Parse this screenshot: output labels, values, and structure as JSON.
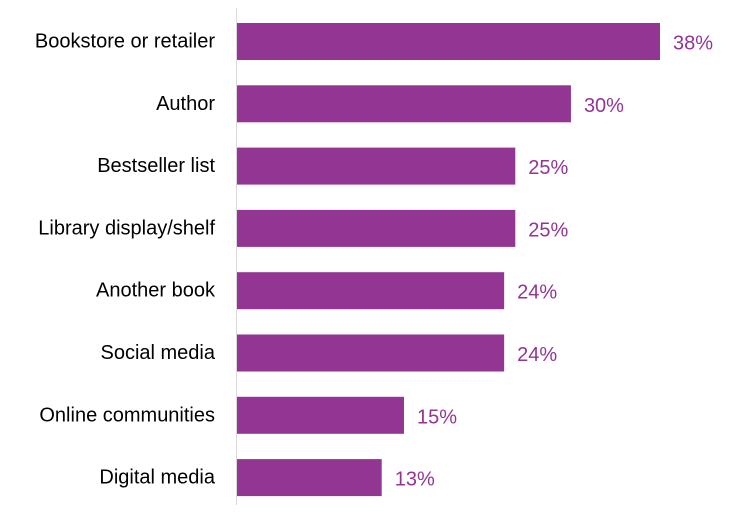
{
  "chart_data": {
    "type": "bar",
    "orientation": "horizontal",
    "title": "",
    "xlabel": "",
    "ylabel": "",
    "xlim": [
      0,
      40
    ],
    "grid": false,
    "categories": [
      "Bookstore or retailer",
      "Author",
      "Bestseller list",
      "Library display/shelf",
      "Another book",
      "Social media",
      "Online communities",
      "Digital media"
    ],
    "values": [
      38,
      30,
      25,
      25,
      24,
      24,
      15,
      13
    ],
    "value_labels": [
      "38%",
      "30%",
      "25%",
      "25%",
      "24%",
      "24%",
      "15%",
      "13%"
    ],
    "colors": {
      "bar": "#923593",
      "value_label": "#923593",
      "axis": "#d9d9d9"
    }
  }
}
